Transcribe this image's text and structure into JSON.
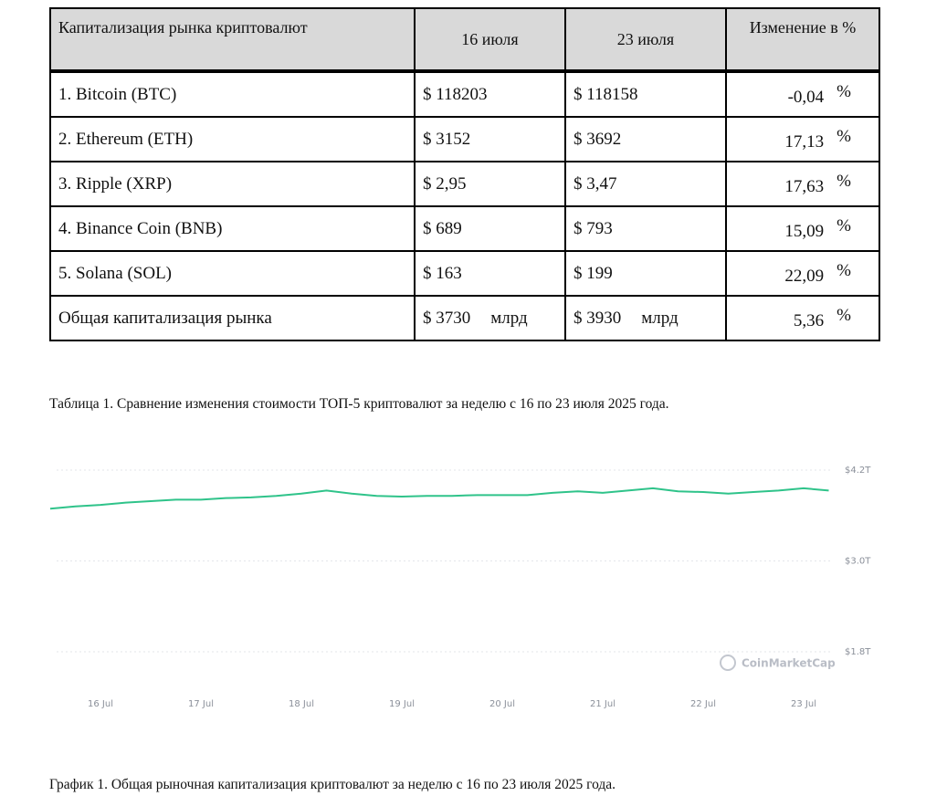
{
  "table": {
    "header": [
      "Капитализация рынка криптовалют",
      "16 июля",
      "23 июля",
      "Изменение в %"
    ],
    "rows": [
      {
        "name": "1.  Bitcoin (BTC)",
        "jul16": "$ 118203",
        "jul23": "$ 118158",
        "change": "-0,04",
        "unit": "%"
      },
      {
        "name": "2.  Ethereum (ETH)",
        "jul16": "$ 3152",
        "jul23": "$ 3692",
        "change": "17,13",
        "unit": "%"
      },
      {
        "name": "3. Ripple (XRP)",
        "jul16": "$ 2,95",
        "jul23": "$ 3,47",
        "change": "17,63",
        "unit": "%"
      },
      {
        "name": "4. Binance Coin (BNB)",
        "jul16": "$ 689",
        "jul23": "$ 793",
        "change": "15,09",
        "unit": "%"
      },
      {
        "name": "5. Solana (SOL)",
        "jul16": "$ 163",
        "jul23": "$ 199",
        "change": "22,09",
        "unit": "%"
      },
      {
        "name": "Общая капитализация рынка",
        "jul16": "$ 3730",
        "jul16_unit": "млрд",
        "jul23": "$ 3930",
        "jul23_unit": "млрд",
        "change": "5,36",
        "unit": "%"
      }
    ]
  },
  "table_caption": "Таблица 1. Сравнение изменения стоимости ТОП-5 криптовалют за неделю с 16 по 23 июля 2025 года.",
  "chart_data": {
    "type": "line",
    "categories": [
      null,
      null,
      "16 Jul",
      null,
      null,
      null,
      "17 Jul",
      null,
      null,
      null,
      "18 Jul",
      null,
      null,
      null,
      "19 Jul",
      null,
      null,
      null,
      "20 Jul",
      null,
      null,
      null,
      "21 Jul",
      null,
      null,
      null,
      "22 Jul",
      null,
      null,
      null,
      "23 Jul",
      null
    ],
    "values": [
      3.69,
      3.72,
      3.74,
      3.77,
      3.79,
      3.81,
      3.81,
      3.83,
      3.84,
      3.86,
      3.89,
      3.93,
      3.89,
      3.86,
      3.85,
      3.86,
      3.86,
      3.87,
      3.87,
      3.87,
      3.9,
      3.92,
      3.9,
      3.93,
      3.96,
      3.92,
      3.91,
      3.89,
      3.91,
      3.93,
      3.96,
      3.93
    ],
    "color": "#2fc38a",
    "ylim": [
      1.8,
      4.2
    ],
    "yticks": [
      {
        "value": 1.8,
        "label": "$1.8T"
      },
      {
        "value": 3.0,
        "label": "$3.0T"
      },
      {
        "value": 4.2,
        "label": "$4.2T"
      }
    ],
    "grid": true,
    "watermark": "CoinMarketCap"
  },
  "chart_caption": "График 1. Общая рыночная капитализация криптовалют за неделю с 16 по 23 июля 2025 года."
}
